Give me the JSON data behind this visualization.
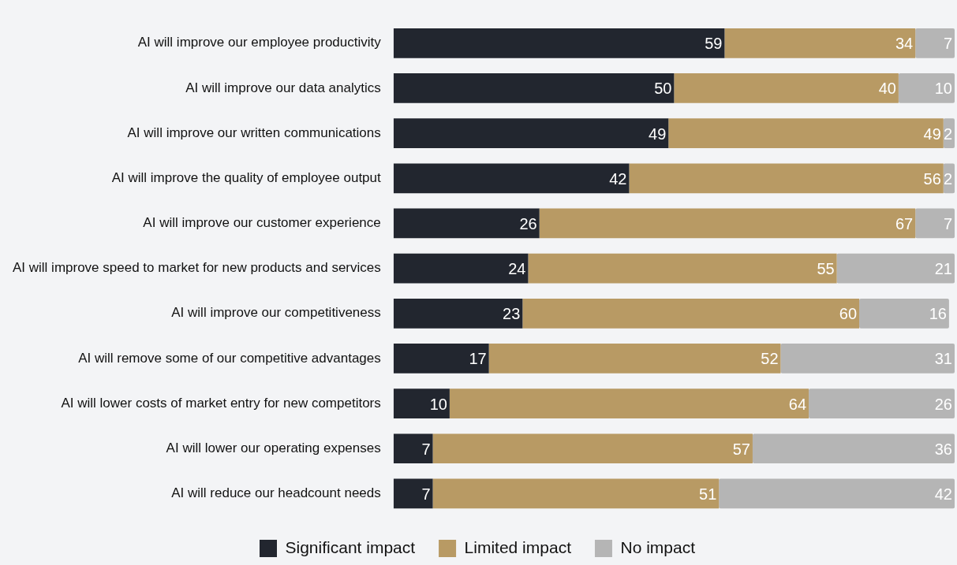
{
  "chart_data": {
    "type": "bar",
    "orientation": "horizontal",
    "stacked": true,
    "data_labels": true,
    "legend": "bottom",
    "tick_labels": "y",
    "categories": [
      "AI will improve our employee productivity",
      "AI will improve our data analytics",
      "AI will improve our written communications",
      "AI will improve the quality of employee output",
      "AI will improve our customer experience",
      "AI will improve speed to market for new products and services",
      "AI will improve our competitiveness",
      "AI will remove some of our competitive advantages",
      "AI will lower costs of market entry for new competitors",
      "AI will lower our operating expenses",
      "AI will reduce our headcount needs"
    ],
    "series": [
      {
        "name": "Significant impact",
        "color": "#22262f",
        "values": [
          59,
          50,
          49,
          42,
          26,
          24,
          23,
          17,
          10,
          7,
          7
        ]
      },
      {
        "name": "Limited impact",
        "color": "#b89a64",
        "values": [
          34,
          40,
          49,
          56,
          67,
          55,
          60,
          52,
          64,
          57,
          51
        ]
      },
      {
        "name": "No impact",
        "color": "#b5b5b5",
        "values": [
          7,
          10,
          2,
          2,
          7,
          21,
          16,
          31,
          26,
          36,
          42
        ]
      }
    ]
  }
}
